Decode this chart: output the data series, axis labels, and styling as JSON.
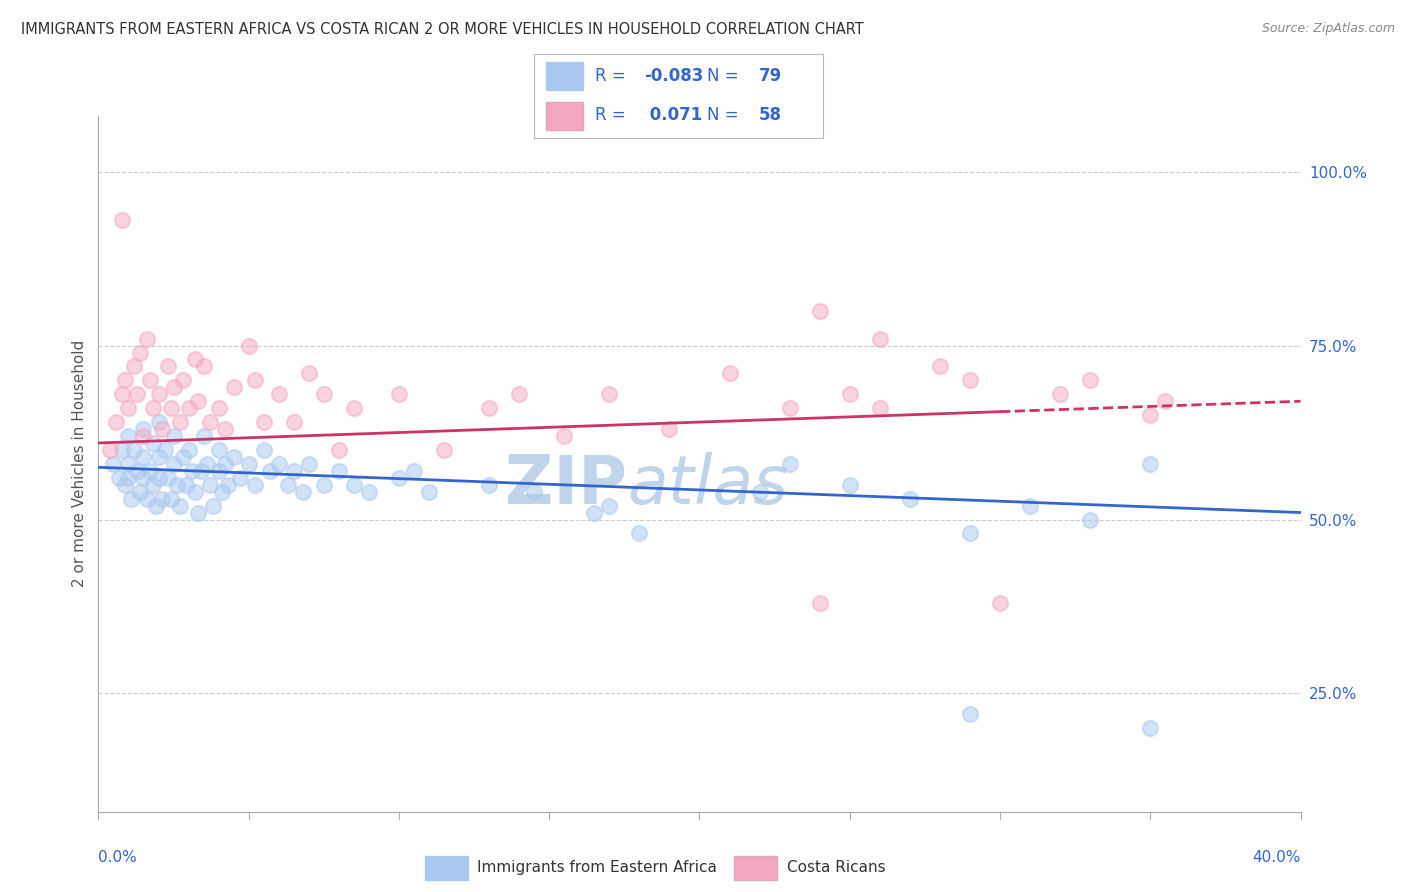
{
  "title": "IMMIGRANTS FROM EASTERN AFRICA VS COSTA RICAN 2 OR MORE VEHICLES IN HOUSEHOLD CORRELATION CHART",
  "source": "Source: ZipAtlas.com",
  "ylabel": "2 or more Vehicles in Household",
  "xlim": [
    0.0,
    0.4
  ],
  "ylim": [
    0.08,
    1.08
  ],
  "ytick_labels": [
    "25.0%",
    "50.0%",
    "75.0%",
    "100.0%"
  ],
  "ytick_values": [
    0.25,
    0.5,
    0.75,
    1.0
  ],
  "blue_R": -0.083,
  "blue_N": 79,
  "pink_R": 0.071,
  "pink_N": 58,
  "blue_color": "#A8C8F0",
  "pink_color": "#F4A8C0",
  "blue_line_color": "#3366CC",
  "pink_line_color": "#CC3366",
  "legend_label_blue": "Immigrants from Eastern Africa",
  "legend_label_pink": "Costa Ricans",
  "blue_scatter_x": [
    0.005,
    0.007,
    0.008,
    0.009,
    0.01,
    0.01,
    0.01,
    0.011,
    0.012,
    0.013,
    0.014,
    0.015,
    0.015,
    0.015,
    0.016,
    0.017,
    0.018,
    0.018,
    0.019,
    0.02,
    0.02,
    0.02,
    0.021,
    0.022,
    0.023,
    0.024,
    0.025,
    0.025,
    0.026,
    0.027,
    0.028,
    0.029,
    0.03,
    0.031,
    0.032,
    0.033,
    0.034,
    0.035,
    0.036,
    0.037,
    0.038,
    0.04,
    0.04,
    0.041,
    0.042,
    0.043,
    0.045,
    0.047,
    0.05,
    0.052,
    0.055,
    0.057,
    0.06,
    0.063,
    0.065,
    0.068,
    0.07,
    0.075,
    0.08,
    0.085,
    0.09,
    0.1,
    0.105,
    0.11,
    0.13,
    0.145,
    0.165,
    0.17,
    0.18,
    0.22,
    0.23,
    0.25,
    0.27,
    0.29,
    0.31,
    0.33,
    0.35,
    0.29,
    0.35
  ],
  "blue_scatter_y": [
    0.58,
    0.56,
    0.6,
    0.55,
    0.62,
    0.58,
    0.56,
    0.53,
    0.6,
    0.57,
    0.54,
    0.63,
    0.59,
    0.56,
    0.53,
    0.57,
    0.61,
    0.55,
    0.52,
    0.64,
    0.59,
    0.56,
    0.53,
    0.6,
    0.56,
    0.53,
    0.62,
    0.58,
    0.55,
    0.52,
    0.59,
    0.55,
    0.6,
    0.57,
    0.54,
    0.51,
    0.57,
    0.62,
    0.58,
    0.55,
    0.52,
    0.6,
    0.57,
    0.54,
    0.58,
    0.55,
    0.59,
    0.56,
    0.58,
    0.55,
    0.6,
    0.57,
    0.58,
    0.55,
    0.57,
    0.54,
    0.58,
    0.55,
    0.57,
    0.55,
    0.54,
    0.56,
    0.57,
    0.54,
    0.55,
    0.54,
    0.51,
    0.52,
    0.48,
    0.54,
    0.58,
    0.55,
    0.53,
    0.48,
    0.52,
    0.5,
    0.58,
    0.22,
    0.2
  ],
  "pink_scatter_x": [
    0.004,
    0.006,
    0.008,
    0.008,
    0.009,
    0.01,
    0.012,
    0.013,
    0.014,
    0.015,
    0.016,
    0.017,
    0.018,
    0.02,
    0.021,
    0.023,
    0.024,
    0.025,
    0.027,
    0.028,
    0.03,
    0.032,
    0.033,
    0.035,
    0.037,
    0.04,
    0.042,
    0.045,
    0.05,
    0.052,
    0.055,
    0.06,
    0.065,
    0.07,
    0.075,
    0.08,
    0.085,
    0.1,
    0.115,
    0.13,
    0.14,
    0.155,
    0.17,
    0.19,
    0.21,
    0.23,
    0.24,
    0.25,
    0.26,
    0.28,
    0.29,
    0.3,
    0.32,
    0.33,
    0.35,
    0.355,
    0.24,
    0.26
  ],
  "pink_scatter_y": [
    0.6,
    0.64,
    0.68,
    0.93,
    0.7,
    0.66,
    0.72,
    0.68,
    0.74,
    0.62,
    0.76,
    0.7,
    0.66,
    0.68,
    0.63,
    0.72,
    0.66,
    0.69,
    0.64,
    0.7,
    0.66,
    0.73,
    0.67,
    0.72,
    0.64,
    0.66,
    0.63,
    0.69,
    0.75,
    0.7,
    0.64,
    0.68,
    0.64,
    0.71,
    0.68,
    0.6,
    0.66,
    0.68,
    0.6,
    0.66,
    0.68,
    0.62,
    0.68,
    0.63,
    0.71,
    0.66,
    0.38,
    0.68,
    0.66,
    0.72,
    0.7,
    0.38,
    0.68,
    0.7,
    0.65,
    0.67,
    0.8,
    0.76
  ],
  "blue_trend": [
    0.575,
    0.51
  ],
  "pink_trend": [
    0.61,
    0.67
  ],
  "grid_color": "#CCCCCC",
  "bg_color": "#FFFFFF",
  "watermark_color": "#C0D5EA",
  "scatter_size": 120,
  "scatter_alpha": 0.5,
  "trend_lw": 2.0,
  "legend_text_color": "#3366CC"
}
